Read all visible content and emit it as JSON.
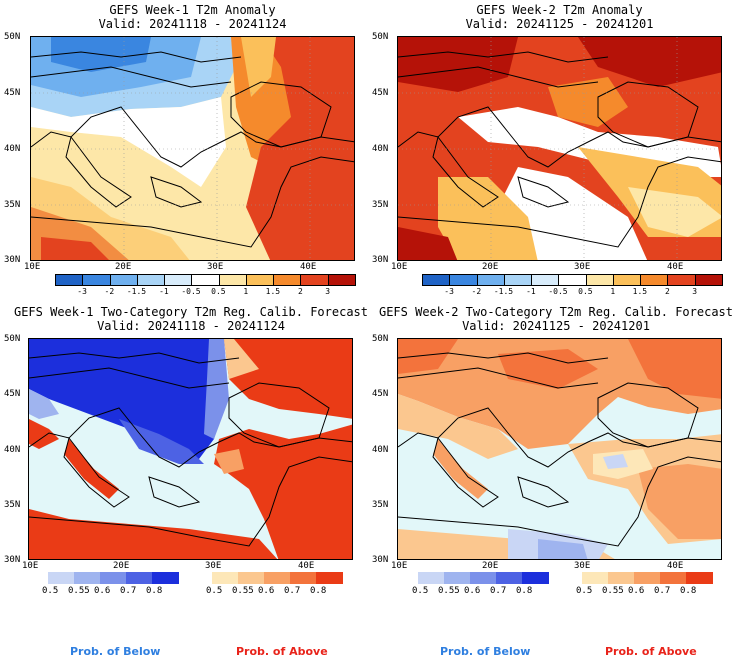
{
  "panels": [
    {
      "id": "p1",
      "title": "GEFS Week-1 T2m Anomaly",
      "valid": "Valid: 20241118 - 20241124",
      "lat_labels": [
        "50N",
        "45N",
        "40N",
        "35N",
        "30N"
      ],
      "lon_labels": [
        "10E",
        "20E",
        "30E",
        "40E"
      ]
    },
    {
      "id": "p2",
      "title": "GEFS Week-2 T2m Anomaly",
      "valid": "Valid: 20241125 - 20241201",
      "lat_labels": [
        "50N",
        "45N",
        "40N",
        "35N",
        "30N"
      ],
      "lon_labels": [
        "10E",
        "20E",
        "30E",
        "40E"
      ]
    },
    {
      "id": "p3",
      "title": "GEFS Week-1 Two-Category T2m Reg. Calib. Forecast",
      "valid": "Valid: 20241118 - 20241124",
      "lat_labels": [
        "50N",
        "45N",
        "40N",
        "35N",
        "30N"
      ],
      "lon_labels": [
        "10E",
        "20E",
        "30E",
        "40E"
      ]
    },
    {
      "id": "p4",
      "title": "GEFS Week-2 Two-Category T2m Reg. Calib. Forecast",
      "valid": "Valid: 20241125 - 20241201",
      "lat_labels": [
        "50N",
        "45N",
        "40N",
        "35N",
        "30N"
      ],
      "lon_labels": [
        "10E",
        "20E",
        "30E",
        "40E"
      ]
    }
  ],
  "anomaly_colorbar": {
    "labels": [
      "-3",
      "-2",
      "-1.5",
      "-1",
      "-0.5",
      "0.5",
      "1",
      "1.5",
      "2",
      "3"
    ],
    "colors": [
      "#1f63c6",
      "#3a86e0",
      "#6fb0ef",
      "#a9d4f6",
      "#d8ecfb",
      "#ffffff",
      "#fde7a8",
      "#fbc05a",
      "#f58a2c",
      "#e3431f",
      "#b51208"
    ]
  },
  "prob_colorbar_below": {
    "labels": [
      "0.5",
      "0.55",
      "0.6",
      "0.7",
      "0.8"
    ],
    "colors": [
      "#c9d6f5",
      "#9fb4ef",
      "#7b91ea",
      "#4d62e4",
      "#1c2fdc"
    ]
  },
  "prob_colorbar_above": {
    "labels": [
      "0.5",
      "0.55",
      "0.6",
      "0.7",
      "0.8"
    ],
    "colors": [
      "#fde7b8",
      "#fbc78f",
      "#f8a064",
      "#f3733c",
      "#ea3b16"
    ]
  },
  "prob_legend": {
    "below": "Prob. of Below",
    "above": "Prob. of Above"
  },
  "colors": {
    "below_text": "#2f7fe0",
    "above_text": "#e8231a",
    "sea": "#e2f7f9",
    "coast": "#000000"
  }
}
